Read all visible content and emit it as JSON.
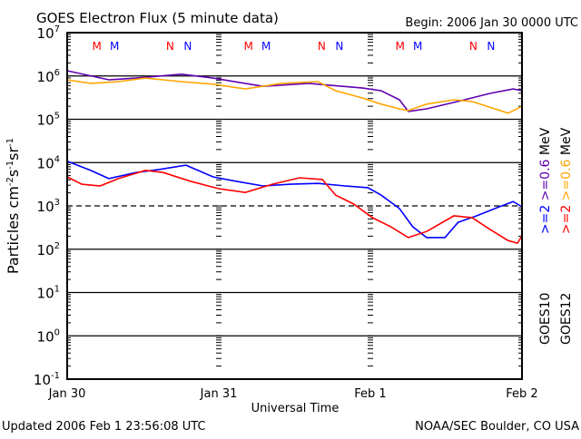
{
  "header": {
    "title": "GOES Electron Flux (5 minute data)",
    "begin": "Begin: 2006 Jan 30 0000 UTC"
  },
  "footer": {
    "updated": "Updated 2006 Feb  1 23:56:08 UTC",
    "source": "NOAA/SEC Boulder, CO USA"
  },
  "markers": {
    "labels": [
      "M",
      "M",
      "N",
      "N"
    ],
    "colors": [
      "#ff0000",
      "#0000ff",
      "#ff0000",
      "#0000ff"
    ]
  },
  "legend": {
    "goes10": {
      "label": "GOES10",
      "items": [
        {
          "text": ">=2",
          "color": "#0000ff"
        },
        {
          "text": ">=0.6",
          "color": "#6000b0"
        },
        {
          "text": "MeV",
          "color": "#000000"
        }
      ]
    },
    "goes12": {
      "label": "GOES12",
      "items": [
        {
          "text": ">=2",
          "color": "#ff0000"
        },
        {
          "text": ">=0.6",
          "color": "#ffa500"
        },
        {
          "text": "MeV",
          "color": "#000000"
        }
      ]
    }
  },
  "chart_data": {
    "type": "line",
    "title": "GOES Electron Flux (5 minute data)",
    "xlabel": "Universal Time",
    "ylabel": "Particles cm-2s-1sr-1",
    "xlim_hours": [
      0,
      72
    ],
    "ylim_log10": [
      -1,
      7
    ],
    "y_scale": "log",
    "x_ticks": [
      {
        "hour": 0,
        "label": "Jan 30"
      },
      {
        "hour": 24,
        "label": "Jan 31"
      },
      {
        "hour": 48,
        "label": "Feb 1"
      },
      {
        "hour": 72,
        "label": "Feb 2"
      }
    ],
    "y_ticks": [
      {
        "exp": 7,
        "base": "10",
        "sup": "7"
      },
      {
        "exp": 6,
        "base": "10",
        "sup": "6"
      },
      {
        "exp": 5,
        "base": "10",
        "sup": "5"
      },
      {
        "exp": 4,
        "base": "10",
        "sup": "4"
      },
      {
        "exp": 3,
        "base": "10",
        "sup": "3"
      },
      {
        "exp": 2,
        "base": "10",
        "sup": "2"
      },
      {
        "exp": 1,
        "base": "10",
        "sup": "1"
      },
      {
        "exp": 0,
        "base": "10",
        "sup": "0"
      },
      {
        "exp": -1,
        "base": "10",
        "sup": "-1"
      }
    ],
    "threshold_log10": 3,
    "series": [
      {
        "name": "GOES10 >=0.6 MeV",
        "color": "#6000b0",
        "hours": [
          0,
          6.6,
          10.9,
          18.1,
          23.1,
          31.0,
          38.2,
          46.8,
          49.7,
          52.6,
          54.0,
          56.9,
          61.2,
          67.0,
          70.6,
          72
        ],
        "log10_flux": [
          6.12,
          5.91,
          5.95,
          6.04,
          5.95,
          5.76,
          5.83,
          5.72,
          5.66,
          5.45,
          5.18,
          5.24,
          5.39,
          5.6,
          5.7,
          5.66
        ]
      },
      {
        "name": "GOES12 >=0.6 MeV",
        "color": "#ffa500",
        "hours": [
          0,
          3.7,
          8.1,
          12.4,
          18.1,
          23.1,
          28.2,
          33.9,
          39.7,
          42.5,
          46.8,
          49.7,
          52.6,
          54.0,
          56.9,
          61.2,
          64.1,
          67.7,
          69.8,
          72
        ],
        "log10_flux": [
          5.91,
          5.83,
          5.87,
          5.95,
          5.87,
          5.81,
          5.7,
          5.83,
          5.87,
          5.66,
          5.49,
          5.35,
          5.24,
          5.2,
          5.35,
          5.45,
          5.41,
          5.24,
          5.14,
          5.3
        ]
      },
      {
        "name": "GOES10 >=2 MeV",
        "color": "#0000ff",
        "hours": [
          0,
          3.7,
          6.6,
          10.9,
          14.5,
          18.8,
          23.1,
          26.7,
          31.0,
          35.4,
          39.7,
          44.0,
          47.6,
          49.7,
          52.6,
          54.7,
          56.9,
          59.8,
          61.9,
          64.8,
          68.4,
          70.6,
          72
        ],
        "log10_flux": [
          4.03,
          3.82,
          3.63,
          3.77,
          3.84,
          3.94,
          3.67,
          3.57,
          3.46,
          3.5,
          3.52,
          3.46,
          3.42,
          3.25,
          2.94,
          2.52,
          2.27,
          2.27,
          2.62,
          2.77,
          2.98,
          3.1,
          2.98
        ]
      },
      {
        "name": "GOES12 >=2 MeV",
        "color": "#ff0000",
        "hours": [
          0,
          2.3,
          5.2,
          8.1,
          12.4,
          15.2,
          19.5,
          23.9,
          28.2,
          32.5,
          36.8,
          40.4,
          42.5,
          45.4,
          48.3,
          51.2,
          54.0,
          56.9,
          61.2,
          64.1,
          66.9,
          69.8,
          71.3,
          72
        ],
        "log10_flux": [
          3.67,
          3.5,
          3.46,
          3.63,
          3.82,
          3.77,
          3.57,
          3.4,
          3.31,
          3.5,
          3.65,
          3.61,
          3.25,
          3.04,
          2.73,
          2.52,
          2.27,
          2.41,
          2.77,
          2.73,
          2.46,
          2.2,
          2.14,
          2.31
        ]
      }
    ]
  }
}
